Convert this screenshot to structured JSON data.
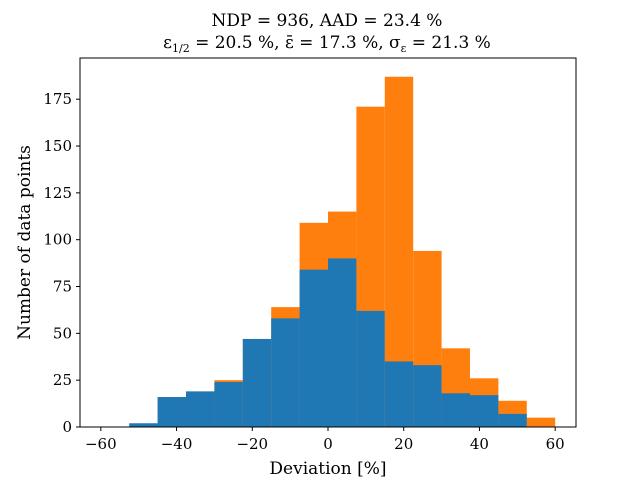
{
  "chart_data": {
    "type": "bar",
    "title": "NDP = 936, AAD = 23.4 %",
    "subtitle": "ε1/2 = 20.5 %, ε̄ = 17.3 %, σε = 21.3 %",
    "xlabel": "Deviation [%]",
    "ylabel": "Number of data points",
    "xlim": [
      -65.5,
      65.5
    ],
    "ylim": [
      0,
      197
    ],
    "xticks": [
      -60,
      -40,
      -20,
      0,
      20,
      40,
      60
    ],
    "xtick_labels": [
      "−60",
      "−40",
      "−20",
      "0",
      "20",
      "40",
      "60"
    ],
    "yticks": [
      0,
      25,
      50,
      75,
      100,
      125,
      150,
      175
    ],
    "ytick_labels": [
      "0",
      "25",
      "50",
      "75",
      "100",
      "125",
      "150",
      "175"
    ],
    "stacked": false,
    "grid": false,
    "bin_edges": [
      -60,
      -52.5,
      -45,
      -37.5,
      -30,
      -22.5,
      -15,
      -7.5,
      0,
      7.5,
      15,
      22.5,
      30,
      37.5,
      45,
      52.5,
      60
    ],
    "series": [
      {
        "color": "#ff7f0e",
        "values": [
          0,
          0,
          16,
          19,
          25,
          47,
          64,
          109,
          115,
          171,
          187,
          94,
          42,
          26,
          14,
          5
        ]
      },
      {
        "color": "#1f77b4",
        "values": [
          0,
          2,
          16,
          19,
          24,
          47,
          58,
          84,
          90,
          62,
          35,
          33,
          18,
          17,
          7,
          0
        ]
      }
    ]
  }
}
